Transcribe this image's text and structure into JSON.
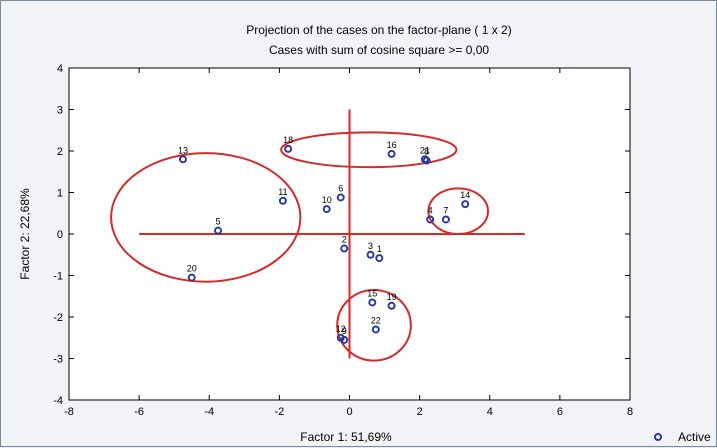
{
  "chart_data": {
    "type": "scatter",
    "title": "Projection of the cases on the factor-plane (  1 x   2)",
    "subtitle": "Cases with sum of cosine square >=  0,00",
    "xlabel": "Factor 1: 51,69%",
    "ylabel": "Factor 2: 22,68%",
    "xlim": [
      -8,
      8
    ],
    "ylim": [
      -4,
      4
    ],
    "xticks": [
      "-8",
      "-6",
      "-4",
      "-2",
      "0",
      "2",
      "4",
      "6",
      "8"
    ],
    "yticks": [
      "4",
      "3",
      "2",
      "1",
      "0",
      "-1",
      "-2",
      "-3",
      "-4"
    ],
    "grid": false,
    "legend": "Active",
    "legend_position": "bottom-right",
    "point_color": "#2a3a9a",
    "annotation_color": "#d42a2a",
    "points": [
      {
        "label": "13",
        "x": -4.75,
        "y": 1.8
      },
      {
        "label": "18",
        "x": -1.75,
        "y": 2.05
      },
      {
        "label": "16",
        "x": 1.2,
        "y": 1.93
      },
      {
        "label": "21",
        "x": 2.15,
        "y": 1.8
      },
      {
        "label": "8",
        "x": 2.2,
        "y": 1.77
      },
      {
        "label": "11",
        "x": -1.9,
        "y": 0.8
      },
      {
        "label": "6",
        "x": -0.25,
        "y": 0.88
      },
      {
        "label": "10",
        "x": -0.65,
        "y": 0.6
      },
      {
        "label": "5",
        "x": -3.75,
        "y": 0.08
      },
      {
        "label": "14",
        "x": 3.3,
        "y": 0.72
      },
      {
        "label": "4",
        "x": 2.3,
        "y": 0.35
      },
      {
        "label": "7",
        "x": 2.75,
        "y": 0.35
      },
      {
        "label": "2",
        "x": -0.15,
        "y": -0.35
      },
      {
        "label": "3",
        "x": 0.6,
        "y": -0.5
      },
      {
        "label": "1",
        "x": 0.85,
        "y": -0.58
      },
      {
        "label": "20",
        "x": -4.5,
        "y": -1.05
      },
      {
        "label": "15",
        "x": 0.65,
        "y": -1.65
      },
      {
        "label": "19",
        "x": 1.2,
        "y": -1.73
      },
      {
        "label": "22",
        "x": 0.75,
        "y": -2.3
      },
      {
        "label": "12",
        "x": -0.25,
        "y": -2.5
      },
      {
        "label": "9",
        "x": -0.15,
        "y": -2.55
      }
    ],
    "annotations": {
      "lines": [
        {
          "x1": -6,
          "y1": 0,
          "x2": 5,
          "y2": 0
        },
        {
          "x1": 0,
          "y1": 3,
          "x2": 0,
          "y2": -3
        }
      ],
      "ellipses": [
        {
          "cx": -4.1,
          "cy": 0.4,
          "rx": 2.7,
          "ry": 1.55
        },
        {
          "cx": 0.55,
          "cy": 2.03,
          "rx": 2.5,
          "ry": 0.42
        },
        {
          "cx": 3.1,
          "cy": 0.55,
          "rx": 0.85,
          "ry": 0.55
        },
        {
          "cx": 0.7,
          "cy": -2.2,
          "rx": 1.05,
          "ry": 0.85
        }
      ]
    }
  }
}
